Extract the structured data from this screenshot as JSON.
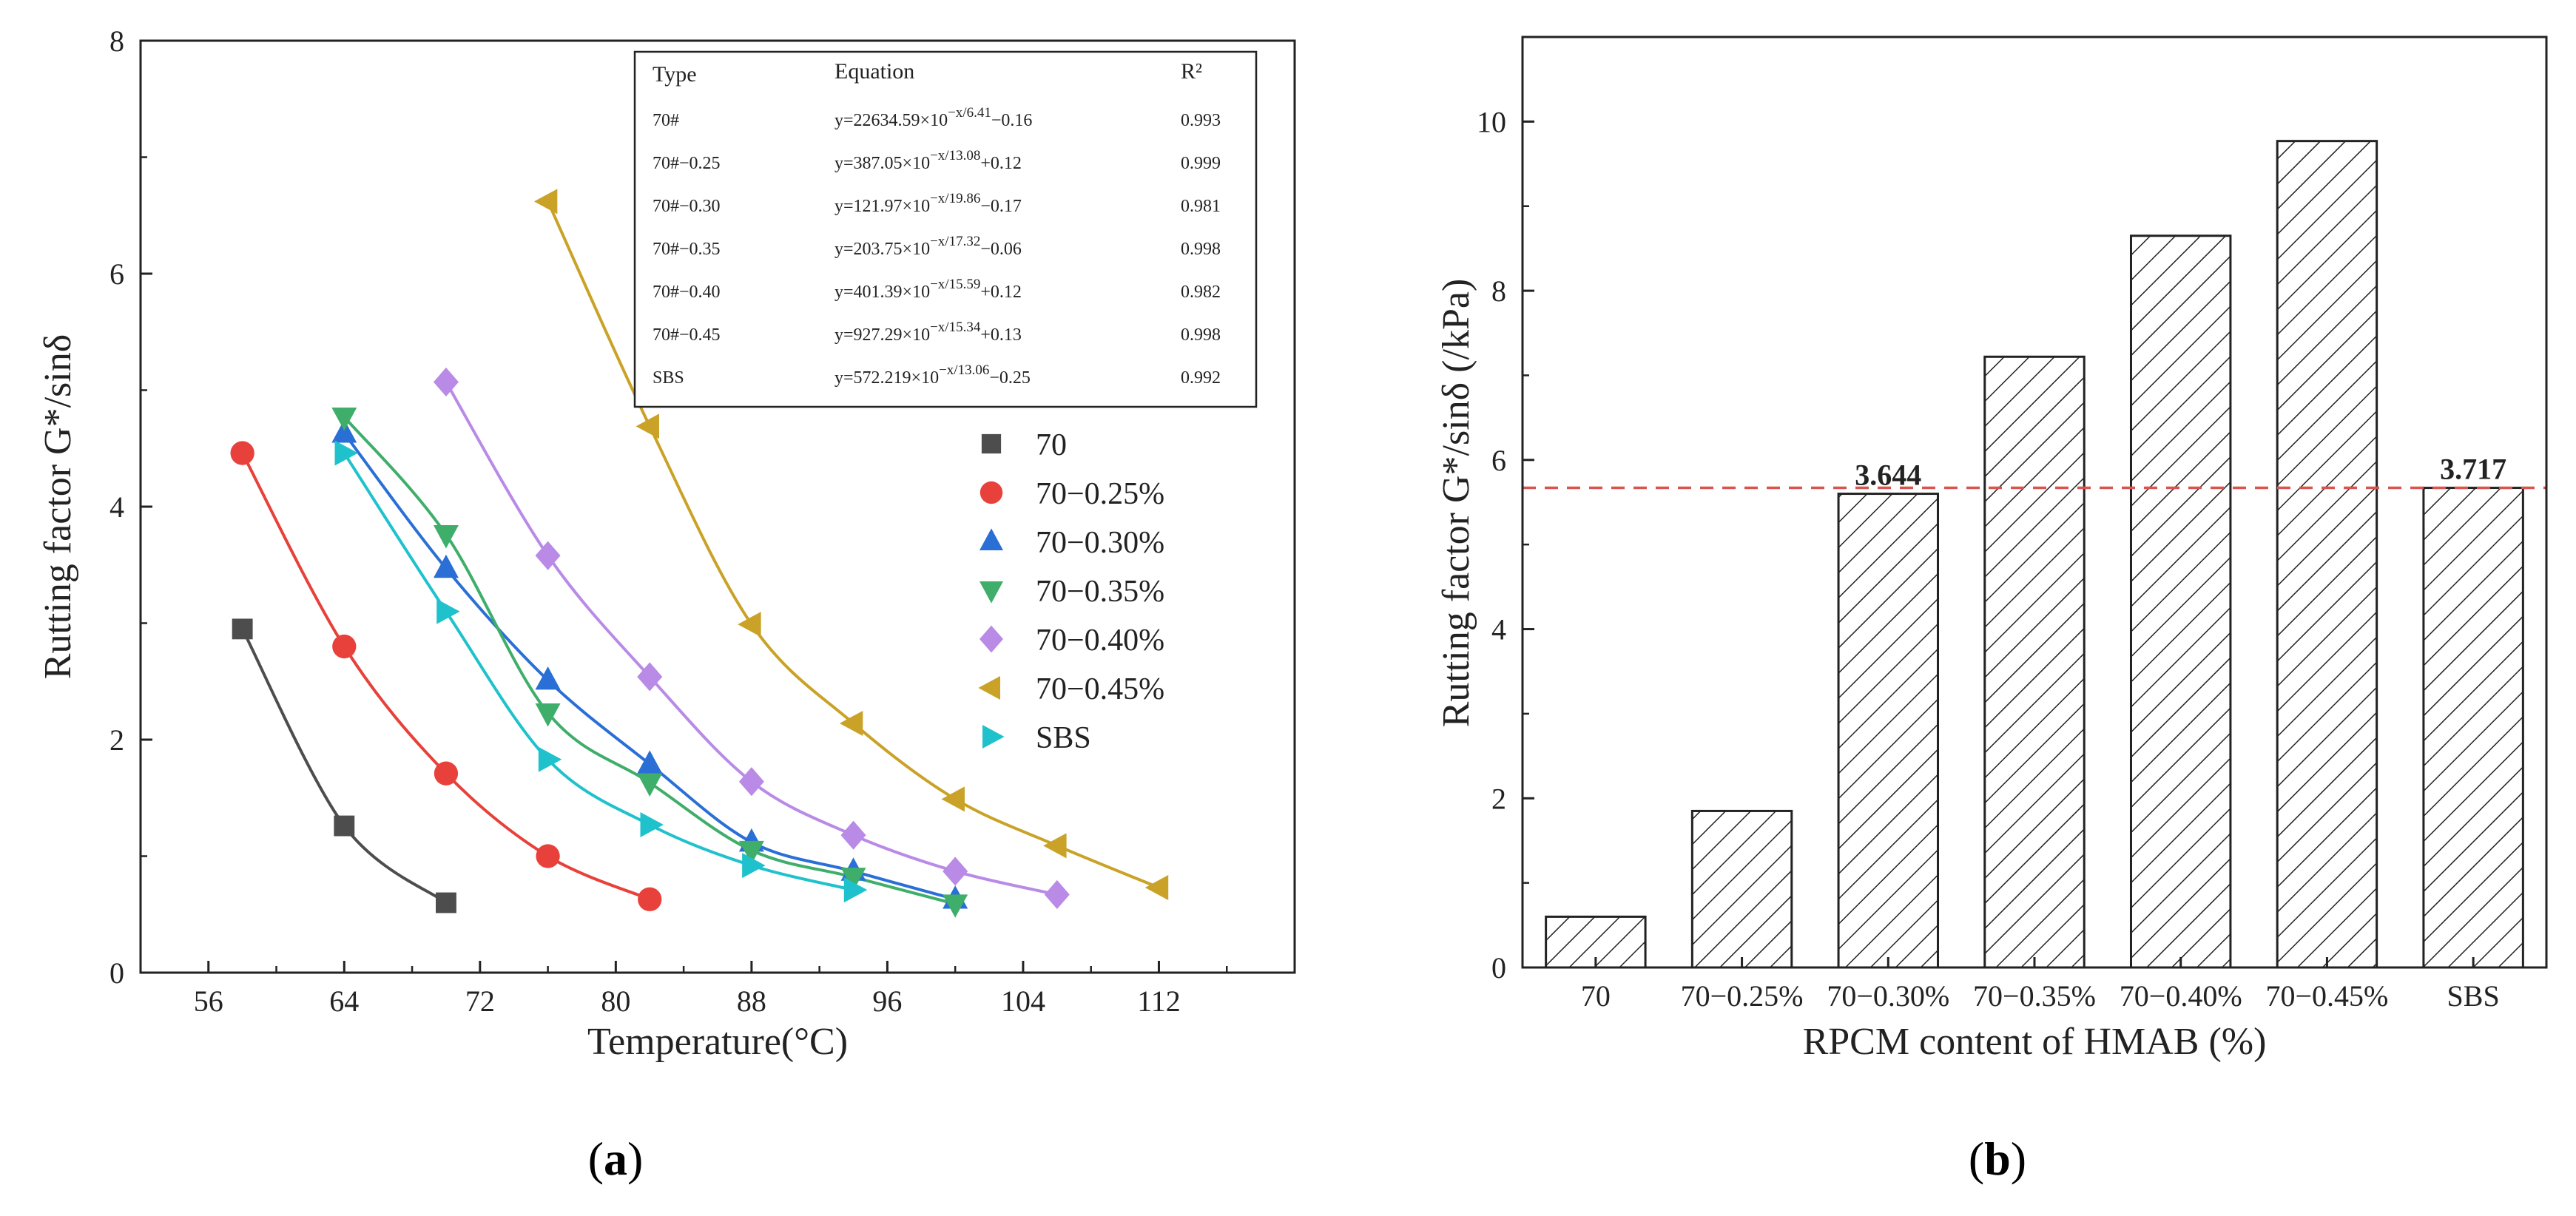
{
  "colors": {
    "s70": "#4d4d4d",
    "s25": "#e8403a",
    "s30": "#2a6fd6",
    "s35": "#3fae6a",
    "s40": "#b98ae6",
    "s45": "#c9a227",
    "sbs": "#1fc2cc",
    "refline": "#d9534f"
  },
  "chart_data": [
    {
      "type": "scatter",
      "panel_label": "a",
      "xlabel": "Temperature(°C)",
      "ylabel": "Rutting factor G*/sinδ",
      "xlim": [
        52,
        120
      ],
      "ylim": [
        0,
        8
      ],
      "xticks": [
        56,
        64,
        72,
        80,
        88,
        96,
        104,
        112
      ],
      "yticks": [
        0,
        2,
        4,
        6,
        8
      ],
      "series": [
        {
          "name": "70",
          "marker": "square",
          "x": [
            58,
            64,
            70
          ],
          "y": [
            2.95,
            1.26,
            0.6
          ],
          "fit": {
            "a": 22634.59,
            "t": 6.41,
            "c": -0.16
          }
        },
        {
          "name": "70−0.25%",
          "marker": "circle",
          "x": [
            58,
            64,
            70,
            76,
            82
          ],
          "y": [
            4.46,
            2.8,
            1.71,
            1.0,
            0.63
          ],
          "fit": {
            "a": 387.05,
            "t": 13.08,
            "c": 0.12
          }
        },
        {
          "name": "70−0.30%",
          "marker": "triangle-up",
          "x": [
            64,
            70,
            76,
            82,
            88,
            94,
            100
          ],
          "y": [
            4.63,
            3.47,
            2.51,
            1.79,
            1.12,
            0.87,
            0.63
          ],
          "fit": {
            "a": 121.97,
            "t": 19.86,
            "c": -0.17
          }
        },
        {
          "name": "70−0.35%",
          "marker": "triangle-down",
          "x": [
            64,
            70,
            76,
            82,
            88,
            94,
            100
          ],
          "y": [
            4.77,
            3.76,
            2.23,
            1.63,
            1.05,
            0.82,
            0.59
          ],
          "fit": {
            "a": 203.75,
            "t": 17.32,
            "c": -0.06
          }
        },
        {
          "name": "70−0.40%",
          "marker": "diamond",
          "x": [
            70,
            76,
            82,
            88,
            94,
            100,
            106
          ],
          "y": [
            5.07,
            3.58,
            2.54,
            1.64,
            1.18,
            0.87,
            0.67
          ],
          "fit": {
            "a": 401.39,
            "t": 15.59,
            "c": 0.12
          }
        },
        {
          "name": "70−0.45%",
          "marker": "triangle-left",
          "x": [
            76,
            82,
            88,
            94,
            100,
            106,
            112
          ],
          "y": [
            6.62,
            4.69,
            2.99,
            2.14,
            1.49,
            1.09,
            0.73
          ],
          "fit": {
            "a": 927.29,
            "t": 15.34,
            "c": 0.13
          }
        },
        {
          "name": "SBS",
          "marker": "triangle-right",
          "x": [
            64,
            70,
            76,
            82,
            88,
            94
          ],
          "y": [
            4.46,
            3.1,
            1.83,
            1.27,
            0.92,
            0.71
          ],
          "fit": {
            "a": 572.219,
            "t": 13.06,
            "c": -0.25
          }
        }
      ],
      "equation_table": {
        "headers": [
          "Type",
          "Equation",
          "R²"
        ],
        "rows": [
          {
            "type": "70#",
            "eq_main": "y=22634.59×10",
            "eq_exp": "−x/6.41",
            "eq_tail": "−0.16",
            "r2": "0.993"
          },
          {
            "type": "70#−0.25",
            "eq_main": "y=387.05×10",
            "eq_exp": "−x/13.08",
            "eq_tail": "+0.12",
            "r2": "0.999"
          },
          {
            "type": "70#−0.30",
            "eq_main": "y=121.97×10",
            "eq_exp": "−x/19.86",
            "eq_tail": "−0.17",
            "r2": "0.981"
          },
          {
            "type": "70#−0.35",
            "eq_main": "y=203.75×10",
            "eq_exp": "−x/17.32",
            "eq_tail": "−0.06",
            "r2": "0.998"
          },
          {
            "type": "70#−0.40",
            "eq_main": "y=401.39×10",
            "eq_exp": "−x/15.59",
            "eq_tail": "+0.12",
            "r2": "0.982"
          },
          {
            "type": "70#−0.45",
            "eq_main": "y=927.29×10",
            "eq_exp": "−x/15.34",
            "eq_tail": "+0.13",
            "r2": "0.998"
          },
          {
            "type": "SBS",
            "eq_main": "y=572.219×10",
            "eq_exp": "−x/13.06",
            "eq_tail": "−0.25",
            "r2": "0.992"
          }
        ]
      }
    },
    {
      "type": "bar",
      "panel_label": "b",
      "xlabel": "RPCM content of HMAB (%)",
      "ylabel": "Rutting factor G*/sinδ (/kPa)",
      "ylim": [
        0,
        11
      ],
      "yticks": [
        0,
        2,
        4,
        6,
        8,
        10
      ],
      "categories": [
        "70",
        "70−0.25%",
        "70−0.30%",
        "70−0.35%",
        "70−0.40%",
        "70−0.45%",
        "SBS"
      ],
      "values": [
        0.6,
        1.85,
        5.6,
        7.22,
        8.65,
        9.77,
        5.67
      ],
      "data_labels": [
        {
          "index": 2,
          "text": "3.644"
        },
        {
          "index": 6,
          "text": "3.717"
        }
      ],
      "reference_line": 5.67
    }
  ]
}
